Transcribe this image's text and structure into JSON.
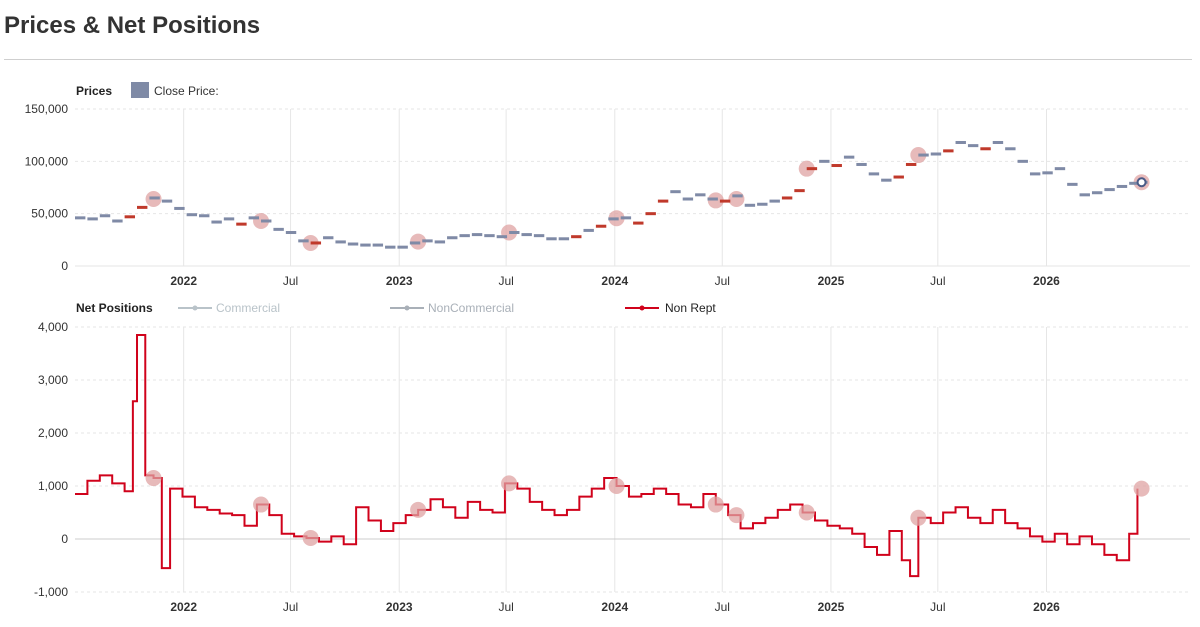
{
  "page": {
    "title": "Prices & Net Positions"
  },
  "colors": {
    "price": "#7f8aa6",
    "price_up": "#c0392b",
    "non_rept": "#d0021b",
    "commercial": "#b9c3c9",
    "noncommercial": "#a9b0b8",
    "grid": "#e6e6e6",
    "marker": "#dfa3a3"
  },
  "legend": {
    "prices_title": "Prices",
    "close_price": "Close Price:",
    "positions_title": "Net Positions",
    "commercial": "Commercial",
    "noncommercial": "NonCommercial",
    "non_rept": "Non Rept"
  },
  "chart_data": [
    {
      "type": "scatter",
      "name": "prices",
      "x_range": [
        "2021-07-01",
        "2026-09-01"
      ],
      "x_ticks": [
        {
          "date": "2022-01-01",
          "label": "2022",
          "bold": true
        },
        {
          "date": "2022-07-01",
          "label": "Jul",
          "bold": false
        },
        {
          "date": "2023-01-01",
          "label": "2023",
          "bold": true
        },
        {
          "date": "2023-07-01",
          "label": "Jul",
          "bold": false
        },
        {
          "date": "2024-01-01",
          "label": "2024",
          "bold": true
        },
        {
          "date": "2024-07-01",
          "label": "Jul",
          "bold": false
        },
        {
          "date": "2025-01-01",
          "label": "2025",
          "bold": true
        },
        {
          "date": "2025-07-01",
          "label": "Jul",
          "bold": false
        },
        {
          "date": "2026-01-01",
          "label": "2026",
          "bold": true
        }
      ],
      "y_ticks": [
        "0",
        "50,000",
        "100,000",
        "150,000"
      ],
      "ylim": [
        0,
        150000
      ],
      "series": [
        {
          "name": "Close Price:",
          "points": [
            [
              "2021-07-01",
              46000
            ],
            [
              "2021-07-22",
              45000
            ],
            [
              "2021-08-12",
              48000
            ],
            [
              "2021-09-02",
              43000
            ],
            [
              "2021-09-23",
              47000
            ],
            [
              "2021-10-14",
              56000
            ],
            [
              "2021-11-04",
              65000
            ],
            [
              "2021-11-25",
              62000
            ],
            [
              "2021-12-16",
              55000
            ],
            [
              "2022-01-06",
              49000
            ],
            [
              "2022-01-27",
              48000
            ],
            [
              "2022-02-17",
              42000
            ],
            [
              "2022-03-10",
              45000
            ],
            [
              "2022-03-31",
              40000
            ],
            [
              "2022-04-21",
              46000
            ],
            [
              "2022-05-12",
              43000
            ],
            [
              "2022-06-02",
              35000
            ],
            [
              "2022-06-23",
              32000
            ],
            [
              "2022-07-14",
              24000
            ],
            [
              "2022-08-04",
              22000
            ],
            [
              "2022-08-25",
              27000
            ],
            [
              "2022-09-15",
              23000
            ],
            [
              "2022-10-06",
              21000
            ],
            [
              "2022-10-27",
              20000
            ],
            [
              "2022-11-17",
              20000
            ],
            [
              "2022-12-08",
              18000
            ],
            [
              "2022-12-29",
              18000
            ],
            [
              "2023-01-19",
              22000
            ],
            [
              "2023-02-09",
              24000
            ],
            [
              "2023-03-02",
              23000
            ],
            [
              "2023-03-23",
              27000
            ],
            [
              "2023-04-13",
              29000
            ],
            [
              "2023-05-04",
              30000
            ],
            [
              "2023-05-25",
              29000
            ],
            [
              "2023-06-15",
              28000
            ],
            [
              "2023-07-06",
              32000
            ],
            [
              "2023-07-27",
              30000
            ],
            [
              "2023-08-17",
              29000
            ],
            [
              "2023-09-07",
              26000
            ],
            [
              "2023-09-28",
              26000
            ],
            [
              "2023-10-19",
              28000
            ],
            [
              "2023-11-09",
              34000
            ],
            [
              "2023-11-30",
              38000
            ],
            [
              "2023-12-21",
              45000
            ],
            [
              "2024-01-11",
              46000
            ],
            [
              "2024-02-01",
              41000
            ],
            [
              "2024-02-22",
              50000
            ],
            [
              "2024-03-14",
              62000
            ],
            [
              "2024-04-04",
              71000
            ],
            [
              "2024-04-25",
              64000
            ],
            [
              "2024-05-16",
              68000
            ],
            [
              "2024-06-06",
              64000
            ],
            [
              "2024-06-27",
              62000
            ],
            [
              "2024-07-18",
              67000
            ],
            [
              "2024-08-08",
              58000
            ],
            [
              "2024-08-29",
              59000
            ],
            [
              "2024-09-19",
              62000
            ],
            [
              "2024-10-10",
              65000
            ],
            [
              "2024-10-31",
              72000
            ],
            [
              "2024-11-21",
              93000
            ],
            [
              "2024-12-12",
              100000
            ],
            [
              "2025-01-02",
              96000
            ],
            [
              "2025-01-23",
              104000
            ],
            [
              "2025-02-13",
              97000
            ],
            [
              "2025-03-06",
              88000
            ],
            [
              "2025-03-27",
              82000
            ],
            [
              "2025-04-17",
              85000
            ],
            [
              "2025-05-08",
              97000
            ],
            [
              "2025-05-29",
              106000
            ],
            [
              "2025-06-19",
              107000
            ],
            [
              "2025-07-10",
              110000
            ],
            [
              "2025-07-31",
              118000
            ],
            [
              "2025-08-21",
              115000
            ],
            [
              "2025-09-11",
              112000
            ],
            [
              "2025-10-02",
              118000
            ],
            [
              "2025-10-23",
              112000
            ],
            [
              "2025-11-13",
              100000
            ],
            [
              "2025-12-04",
              88000
            ],
            [
              "2025-12-25",
              89000
            ],
            [
              "2026-01-15",
              93000
            ],
            [
              "2026-02-05",
              78000
            ],
            [
              "2026-02-26",
              68000
            ],
            [
              "2026-03-19",
              70000
            ],
            [
              "2026-04-09",
              73000
            ],
            [
              "2026-04-30",
              76000
            ],
            [
              "2026-05-21",
              79000
            ],
            [
              "2026-06-11",
              80000
            ]
          ]
        }
      ]
    },
    {
      "type": "line",
      "name": "net_positions",
      "x_range": [
        "2021-07-01",
        "2026-09-01"
      ],
      "y_ticks": [
        "-1,000",
        "0",
        "1,000",
        "2,000",
        "3,000",
        "4,000"
      ],
      "ylim": [
        -1000,
        4000
      ],
      "series": [
        {
          "name": "Non Rept",
          "points": [
            [
              "2021-07-01",
              850
            ],
            [
              "2021-07-22",
              1100
            ],
            [
              "2021-08-12",
              1200
            ],
            [
              "2021-09-02",
              1050
            ],
            [
              "2021-09-23",
              900
            ],
            [
              "2021-10-07",
              2600
            ],
            [
              "2021-10-14",
              3850
            ],
            [
              "2021-10-28",
              1200
            ],
            [
              "2021-11-11",
              1150
            ],
            [
              "2021-11-25",
              -550
            ],
            [
              "2021-12-09",
              950
            ],
            [
              "2021-12-30",
              800
            ],
            [
              "2022-01-20",
              600
            ],
            [
              "2022-02-10",
              550
            ],
            [
              "2022-03-03",
              480
            ],
            [
              "2022-03-24",
              450
            ],
            [
              "2022-04-14",
              250
            ],
            [
              "2022-05-05",
              650
            ],
            [
              "2022-05-26",
              450
            ],
            [
              "2022-06-16",
              100
            ],
            [
              "2022-07-07",
              50
            ],
            [
              "2022-07-28",
              20
            ],
            [
              "2022-08-18",
              -50
            ],
            [
              "2022-09-08",
              50
            ],
            [
              "2022-09-29",
              -100
            ],
            [
              "2022-10-20",
              600
            ],
            [
              "2022-11-10",
              350
            ],
            [
              "2022-12-01",
              150
            ],
            [
              "2022-12-22",
              300
            ],
            [
              "2023-01-12",
              450
            ],
            [
              "2023-02-02",
              550
            ],
            [
              "2023-02-23",
              750
            ],
            [
              "2023-03-16",
              600
            ],
            [
              "2023-04-06",
              400
            ],
            [
              "2023-04-27",
              700
            ],
            [
              "2023-05-18",
              550
            ],
            [
              "2023-06-08",
              500
            ],
            [
              "2023-06-29",
              1050
            ],
            [
              "2023-07-20",
              950
            ],
            [
              "2023-08-10",
              700
            ],
            [
              "2023-08-31",
              550
            ],
            [
              "2023-09-21",
              450
            ],
            [
              "2023-10-12",
              550
            ],
            [
              "2023-11-02",
              800
            ],
            [
              "2023-11-23",
              950
            ],
            [
              "2023-12-14",
              1150
            ],
            [
              "2024-01-04",
              1000
            ],
            [
              "2024-01-25",
              800
            ],
            [
              "2024-02-15",
              850
            ],
            [
              "2024-03-07",
              950
            ],
            [
              "2024-03-28",
              850
            ],
            [
              "2024-04-18",
              650
            ],
            [
              "2024-05-09",
              600
            ],
            [
              "2024-05-30",
              850
            ],
            [
              "2024-06-20",
              650
            ],
            [
              "2024-07-11",
              450
            ],
            [
              "2024-08-01",
              200
            ],
            [
              "2024-08-22",
              300
            ],
            [
              "2024-09-12",
              400
            ],
            [
              "2024-10-03",
              550
            ],
            [
              "2024-10-24",
              650
            ],
            [
              "2024-11-14",
              500
            ],
            [
              "2024-12-05",
              350
            ],
            [
              "2024-12-26",
              250
            ],
            [
              "2025-01-16",
              200
            ],
            [
              "2025-02-06",
              100
            ],
            [
              "2025-02-27",
              -150
            ],
            [
              "2025-03-20",
              -300
            ],
            [
              "2025-04-10",
              150
            ],
            [
              "2025-05-01",
              -400
            ],
            [
              "2025-05-15",
              -700
            ],
            [
              "2025-05-29",
              400
            ],
            [
              "2025-06-19",
              300
            ],
            [
              "2025-07-10",
              500
            ],
            [
              "2025-07-31",
              600
            ],
            [
              "2025-08-21",
              400
            ],
            [
              "2025-09-11",
              300
            ],
            [
              "2025-10-02",
              550
            ],
            [
              "2025-10-23",
              300
            ],
            [
              "2025-11-13",
              200
            ],
            [
              "2025-12-04",
              50
            ],
            [
              "2025-12-25",
              -50
            ],
            [
              "2026-01-15",
              100
            ],
            [
              "2026-02-05",
              -100
            ],
            [
              "2026-02-26",
              50
            ],
            [
              "2026-03-19",
              -100
            ],
            [
              "2026-04-09",
              -300
            ],
            [
              "2026-04-30",
              -400
            ],
            [
              "2026-05-21",
              100
            ],
            [
              "2026-06-04",
              950
            ]
          ]
        }
      ]
    }
  ],
  "highlight_dates": [
    "2021-11-11",
    "2022-05-12",
    "2022-08-04",
    "2023-02-02",
    "2023-07-06",
    "2024-01-04",
    "2024-06-20",
    "2024-07-25",
    "2024-11-21",
    "2025-05-29",
    "2026-06-11"
  ]
}
